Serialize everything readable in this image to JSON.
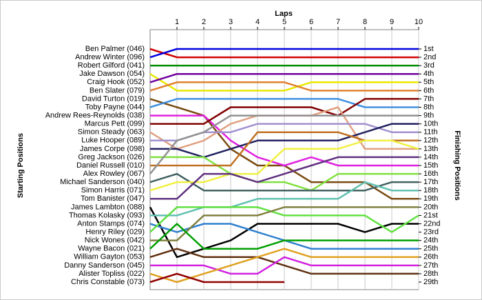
{
  "chart_data": {
    "type": "lap",
    "title": "Laps",
    "y_title": "Starting Positions",
    "y2_title": "Finishing Positions",
    "x": [
      0,
      1,
      2,
      3,
      4,
      5,
      6,
      7,
      8,
      9,
      10
    ],
    "xlim": [
      0,
      10
    ],
    "xticks": [
      1,
      2,
      3,
      4,
      5,
      6,
      7,
      8,
      9,
      10
    ],
    "ylim": [
      29,
      1
    ],
    "y2lim": [
      29,
      1
    ],
    "y2ticks": [
      {
        "value": 1,
        "label": "1st"
      },
      {
        "value": 2,
        "label": "2nd"
      },
      {
        "value": 3,
        "label": "3rd"
      },
      {
        "value": 4,
        "label": "4th"
      },
      {
        "value": 5,
        "label": "5th"
      },
      {
        "value": 6,
        "label": "6th"
      },
      {
        "value": 7,
        "label": "7th"
      },
      {
        "value": 8,
        "label": "8th"
      },
      {
        "value": 9,
        "label": "9th"
      },
      {
        "value": 10,
        "label": "10th"
      },
      {
        "value": 11,
        "label": "11th"
      },
      {
        "value": 12,
        "label": "12th"
      },
      {
        "value": 13,
        "label": "13th"
      },
      {
        "value": 14,
        "label": "14th"
      },
      {
        "value": 15,
        "label": "15th"
      },
      {
        "value": 16,
        "label": "16th"
      },
      {
        "value": 17,
        "label": "17th"
      },
      {
        "value": 18,
        "label": "18th"
      },
      {
        "value": 19,
        "label": "19th"
      },
      {
        "value": 20,
        "label": "20th"
      },
      {
        "value": 21,
        "label": "21st"
      },
      {
        "value": 22,
        "label": "22nd"
      },
      {
        "value": 23,
        "label": "23rd"
      },
      {
        "value": 24,
        "label": "24th"
      },
      {
        "value": 25,
        "label": "25th"
      },
      {
        "value": 26,
        "label": "26th"
      },
      {
        "value": 27,
        "label": "27th"
      },
      {
        "value": 28,
        "label": "28th"
      },
      {
        "value": 29,
        "label": "29th"
      }
    ],
    "grid": true,
    "series": [
      {
        "name": "Ben Palmer (046)",
        "color": "#d00000",
        "values": [
          1,
          2,
          2,
          2,
          2,
          2,
          2,
          2,
          2,
          2,
          2
        ]
      },
      {
        "name": "Andrew Winter (096)",
        "color": "#0000e0",
        "values": [
          2,
          1,
          1,
          1,
          1,
          1,
          1,
          1,
          1,
          1,
          1
        ]
      },
      {
        "name": "Robert Gilford (041)",
        "color": "#008c00",
        "values": [
          3,
          3,
          3,
          3,
          3,
          3,
          3,
          3,
          3,
          3,
          3
        ]
      },
      {
        "name": "Jake Dawson (054)",
        "color": "#e8e800",
        "values": [
          4,
          6,
          6,
          6,
          6,
          6,
          5,
          5,
          5,
          5,
          5
        ]
      },
      {
        "name": "Craig Hook (052)",
        "color": "#7000a0",
        "values": [
          5,
          4,
          4,
          4,
          4,
          4,
          4,
          4,
          4,
          4,
          4
        ]
      },
      {
        "name": "Ben Slater (079)",
        "color": "#e08030",
        "values": [
          6,
          5,
          5,
          5,
          5,
          5,
          6,
          6,
          6,
          6,
          6
        ]
      },
      {
        "name": "David Turton (019)",
        "color": "#7a4a10",
        "values": [
          7,
          8,
          9,
          13,
          15,
          15,
          17,
          17,
          17,
          19,
          19
        ]
      },
      {
        "name": "Toby Payne (044)",
        "color": "#4090e0",
        "values": [
          8,
          7,
          7,
          7,
          7,
          7,
          7,
          7,
          8,
          8,
          8
        ]
      },
      {
        "name": "Andrew Rees-Reynolds (038)",
        "color": "#e020e0",
        "values": [
          9,
          9,
          9,
          12,
          14,
          15,
          14,
          15,
          15,
          15,
          15
        ]
      },
      {
        "name": "Marcus Pett (099)",
        "color": "#800000",
        "values": [
          10,
          10,
          10,
          8,
          8,
          8,
          8,
          9,
          7,
          7,
          7
        ]
      },
      {
        "name": "Simon Steady (063)",
        "color": "#e0a080",
        "values": [
          11,
          13,
          12,
          10,
          9,
          9,
          9,
          8,
          13,
          13,
          13
        ]
      },
      {
        "name": "Luke Hooper (089)",
        "color": "#a090d0",
        "values": [
          12,
          12,
          11,
          11,
          10,
          10,
          10,
          10,
          10,
          11,
          11
        ]
      },
      {
        "name": "James Corpe (098)",
        "color": "#202060",
        "values": [
          13,
          13,
          14,
          13,
          12,
          12,
          12,
          12,
          11,
          10,
          10
        ]
      },
      {
        "name": "Greg Jackson (026)",
        "color": "#80e040",
        "values": [
          14,
          14,
          14,
          16,
          17,
          17,
          18,
          16,
          16,
          16,
          16
        ]
      },
      {
        "name": "Daniel Russell (010)",
        "color": "#c07020",
        "values": [
          15,
          15,
          15,
          15,
          11,
          11,
          11,
          11,
          12,
          12,
          12
        ]
      },
      {
        "name": "Alex Rowley (067)",
        "color": "#909090",
        "values": [
          16,
          12,
          11,
          9,
          9,
          9,
          9,
          9,
          9,
          9,
          9
        ]
      },
      {
        "name": "Michael Sanderson (040)",
        "color": "#406060",
        "values": [
          17,
          16,
          18,
          18,
          18,
          18,
          18,
          18,
          18,
          17,
          17
        ]
      },
      {
        "name": "Simon Harris (071)",
        "color": "#f0f040",
        "values": [
          18,
          17,
          17,
          16,
          16,
          13,
          13,
          13,
          12,
          12,
          13
        ]
      },
      {
        "name": "Tom Banister (047)",
        "color": "#603080",
        "values": [
          19,
          19,
          16,
          16,
          17,
          16,
          15,
          14,
          14,
          14,
          14
        ]
      },
      {
        "name": "James Lambton (088)",
        "color": "#000000",
        "values": [
          20,
          26,
          25,
          24,
          22,
          22,
          22,
          22,
          23,
          22,
          22
        ]
      },
      {
        "name": "Thomas Kolasky (093)",
        "color": "#60c0b0",
        "values": [
          21,
          21,
          20,
          20,
          19,
          19,
          19,
          19,
          17,
          18,
          18
        ]
      },
      {
        "name": "Anton Stamps (074)",
        "color": "#3080d0",
        "values": [
          22,
          23,
          22,
          22,
          23,
          24,
          25,
          25,
          25,
          25,
          25
        ]
      },
      {
        "name": "Henry Riley (029)",
        "color": "#60e040",
        "values": [
          23,
          20,
          20,
          20,
          20,
          21,
          21,
          21,
          21,
          23,
          21
        ]
      },
      {
        "name": "Nick Wones (042)",
        "color": "#808040",
        "values": [
          24,
          24,
          21,
          21,
          21,
          20,
          20,
          20,
          20,
          20,
          20
        ]
      },
      {
        "name": "Wayne Bacon (021)",
        "color": "#00a000",
        "values": [
          25,
          22,
          25,
          25,
          25,
          24,
          24,
          24,
          24,
          24,
          24
        ]
      },
      {
        "name": "William Gayton (053)",
        "color": "#603010",
        "values": [
          26,
          25,
          26,
          26,
          26,
          27,
          28,
          28,
          28,
          28,
          28
        ]
      },
      {
        "name": "Danny Sanderson (045)",
        "color": "#d020e0",
        "values": [
          27,
          27,
          27,
          28,
          28,
          26,
          27,
          27,
          27,
          27,
          27
        ]
      },
      {
        "name": "Alister Topliss (022)",
        "color": "#e0a020",
        "values": [
          28,
          29,
          28,
          27,
          26,
          25,
          26,
          26,
          26,
          26,
          26
        ]
      },
      {
        "name": "Chris Constable (073)",
        "color": "#900000",
        "values": [
          29,
          28,
          29,
          29,
          29,
          29,
          null,
          null,
          null,
          null,
          null
        ]
      }
    ]
  }
}
